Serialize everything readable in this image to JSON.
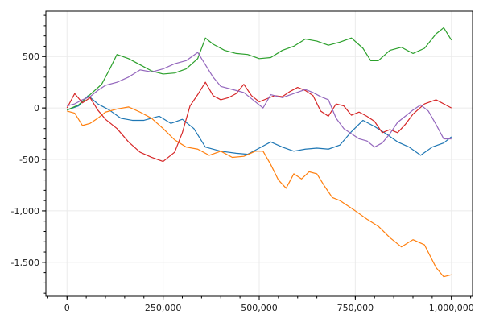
{
  "chart_data": {
    "type": "line",
    "title": "",
    "xlabel": "",
    "ylabel": "",
    "xlim": [
      -55000,
      1055000
    ],
    "ylim": [
      -1830,
      940
    ],
    "xticks": [
      0,
      250000,
      500000,
      750000,
      1000000
    ],
    "xtick_labels": [
      "0",
      "250,000",
      "500,000",
      "750,000",
      "1,000,000"
    ],
    "yticks": [
      500,
      0,
      -500,
      -1000,
      -1500
    ],
    "ytick_labels": [
      "500",
      "0",
      "-500",
      "-1,000",
      "-1,500"
    ],
    "grid": true,
    "legend": "none",
    "series": [
      {
        "color": "#1f77b4",
        "points": [
          [
            0,
            -20
          ],
          [
            30000,
            20
          ],
          [
            55000,
            120
          ],
          [
            80000,
            40
          ],
          [
            110000,
            -20
          ],
          [
            140000,
            -100
          ],
          [
            170000,
            -120
          ],
          [
            200000,
            -120
          ],
          [
            240000,
            -80
          ],
          [
            270000,
            -150
          ],
          [
            300000,
            -110
          ],
          [
            330000,
            -200
          ],
          [
            360000,
            -380
          ],
          [
            400000,
            -420
          ],
          [
            440000,
            -440
          ],
          [
            470000,
            -450
          ],
          [
            500000,
            -390
          ],
          [
            530000,
            -330
          ],
          [
            560000,
            -380
          ],
          [
            590000,
            -420
          ],
          [
            620000,
            -400
          ],
          [
            650000,
            -390
          ],
          [
            680000,
            -400
          ],
          [
            710000,
            -360
          ],
          [
            740000,
            -230
          ],
          [
            770000,
            -120
          ],
          [
            800000,
            -180
          ],
          [
            830000,
            -250
          ],
          [
            860000,
            -330
          ],
          [
            890000,
            -380
          ],
          [
            920000,
            -460
          ],
          [
            950000,
            -380
          ],
          [
            980000,
            -340
          ],
          [
            1000000,
            -280
          ]
        ]
      },
      {
        "color": "#ff7f0e",
        "points": [
          [
            0,
            -30
          ],
          [
            20000,
            -50
          ],
          [
            40000,
            -170
          ],
          [
            60000,
            -150
          ],
          [
            80000,
            -100
          ],
          [
            100000,
            -40
          ],
          [
            130000,
            -10
          ],
          [
            160000,
            10
          ],
          [
            190000,
            -40
          ],
          [
            220000,
            -100
          ],
          [
            250000,
            -200
          ],
          [
            280000,
            -310
          ],
          [
            310000,
            -380
          ],
          [
            340000,
            -400
          ],
          [
            370000,
            -460
          ],
          [
            400000,
            -420
          ],
          [
            430000,
            -480
          ],
          [
            460000,
            -470
          ],
          [
            490000,
            -420
          ],
          [
            510000,
            -420
          ],
          [
            530000,
            -550
          ],
          [
            550000,
            -700
          ],
          [
            570000,
            -780
          ],
          [
            590000,
            -640
          ],
          [
            610000,
            -690
          ],
          [
            630000,
            -620
          ],
          [
            650000,
            -640
          ],
          [
            670000,
            -760
          ],
          [
            690000,
            -870
          ],
          [
            710000,
            -900
          ],
          [
            730000,
            -950
          ],
          [
            750000,
            -1000
          ],
          [
            780000,
            -1080
          ],
          [
            810000,
            -1150
          ],
          [
            840000,
            -1260
          ],
          [
            870000,
            -1350
          ],
          [
            900000,
            -1280
          ],
          [
            930000,
            -1330
          ],
          [
            960000,
            -1550
          ],
          [
            980000,
            -1640
          ],
          [
            1000000,
            -1620
          ]
        ]
      },
      {
        "color": "#2ca02c",
        "points": [
          [
            0,
            -20
          ],
          [
            30000,
            30
          ],
          [
            60000,
            130
          ],
          [
            90000,
            230
          ],
          [
            110000,
            370
          ],
          [
            130000,
            520
          ],
          [
            160000,
            480
          ],
          [
            190000,
            420
          ],
          [
            220000,
            360
          ],
          [
            250000,
            330
          ],
          [
            280000,
            340
          ],
          [
            310000,
            380
          ],
          [
            340000,
            480
          ],
          [
            360000,
            680
          ],
          [
            380000,
            620
          ],
          [
            410000,
            560
          ],
          [
            440000,
            530
          ],
          [
            470000,
            520
          ],
          [
            500000,
            480
          ],
          [
            530000,
            490
          ],
          [
            560000,
            560
          ],
          [
            590000,
            600
          ],
          [
            620000,
            670
          ],
          [
            650000,
            650
          ],
          [
            680000,
            610
          ],
          [
            710000,
            640
          ],
          [
            740000,
            680
          ],
          [
            770000,
            580
          ],
          [
            790000,
            460
          ],
          [
            810000,
            460
          ],
          [
            840000,
            560
          ],
          [
            870000,
            590
          ],
          [
            900000,
            530
          ],
          [
            930000,
            580
          ],
          [
            960000,
            720
          ],
          [
            980000,
            780
          ],
          [
            1000000,
            660
          ]
        ]
      },
      {
        "color": "#d62728",
        "points": [
          [
            0,
            0
          ],
          [
            20000,
            140
          ],
          [
            40000,
            50
          ],
          [
            60000,
            100
          ],
          [
            80000,
            -20
          ],
          [
            100000,
            -110
          ],
          [
            130000,
            -200
          ],
          [
            160000,
            -330
          ],
          [
            190000,
            -430
          ],
          [
            220000,
            -480
          ],
          [
            250000,
            -520
          ],
          [
            280000,
            -430
          ],
          [
            300000,
            -240
          ],
          [
            320000,
            20
          ],
          [
            340000,
            130
          ],
          [
            360000,
            250
          ],
          [
            380000,
            120
          ],
          [
            400000,
            80
          ],
          [
            420000,
            100
          ],
          [
            440000,
            140
          ],
          [
            460000,
            230
          ],
          [
            480000,
            120
          ],
          [
            500000,
            60
          ],
          [
            520000,
            90
          ],
          [
            540000,
            120
          ],
          [
            560000,
            110
          ],
          [
            580000,
            160
          ],
          [
            600000,
            200
          ],
          [
            620000,
            170
          ],
          [
            640000,
            120
          ],
          [
            660000,
            -30
          ],
          [
            680000,
            -80
          ],
          [
            700000,
            40
          ],
          [
            720000,
            20
          ],
          [
            740000,
            -70
          ],
          [
            760000,
            -40
          ],
          [
            780000,
            -80
          ],
          [
            800000,
            -130
          ],
          [
            820000,
            -240
          ],
          [
            840000,
            -210
          ],
          [
            860000,
            -240
          ],
          [
            880000,
            -160
          ],
          [
            900000,
            -60
          ],
          [
            930000,
            40
          ],
          [
            960000,
            80
          ],
          [
            1000000,
            0
          ]
        ]
      },
      {
        "color": "#9467bd",
        "points": [
          [
            0,
            20
          ],
          [
            20000,
            40
          ],
          [
            40000,
            80
          ],
          [
            60000,
            110
          ],
          [
            80000,
            170
          ],
          [
            100000,
            220
          ],
          [
            130000,
            250
          ],
          [
            160000,
            300
          ],
          [
            190000,
            370
          ],
          [
            220000,
            350
          ],
          [
            250000,
            380
          ],
          [
            280000,
            430
          ],
          [
            310000,
            460
          ],
          [
            340000,
            540
          ],
          [
            360000,
            420
          ],
          [
            380000,
            300
          ],
          [
            400000,
            210
          ],
          [
            430000,
            180
          ],
          [
            460000,
            150
          ],
          [
            490000,
            60
          ],
          [
            510000,
            0
          ],
          [
            530000,
            130
          ],
          [
            560000,
            100
          ],
          [
            590000,
            140
          ],
          [
            620000,
            180
          ],
          [
            640000,
            150
          ],
          [
            660000,
            110
          ],
          [
            680000,
            80
          ],
          [
            700000,
            -100
          ],
          [
            720000,
            -200
          ],
          [
            740000,
            -250
          ],
          [
            760000,
            -300
          ],
          [
            780000,
            -320
          ],
          [
            800000,
            -380
          ],
          [
            820000,
            -340
          ],
          [
            840000,
            -250
          ],
          [
            860000,
            -140
          ],
          [
            880000,
            -80
          ],
          [
            900000,
            -20
          ],
          [
            920000,
            30
          ],
          [
            940000,
            -30
          ],
          [
            960000,
            -160
          ],
          [
            980000,
            -300
          ],
          [
            1000000,
            -300
          ]
        ]
      }
    ]
  }
}
